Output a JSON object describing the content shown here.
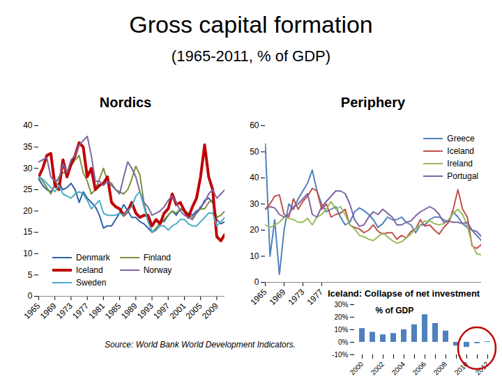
{
  "title": "Gross capital formation",
  "subtitle": "(1965-2011, % of GDP)",
  "source": "Source: World Bank World Development Indicators.",
  "chart_data": [
    {
      "type": "line",
      "title": "Nordics",
      "x": [
        1965,
        1966,
        1967,
        1968,
        1969,
        1970,
        1971,
        1972,
        1973,
        1974,
        1975,
        1976,
        1977,
        1978,
        1979,
        1980,
        1981,
        1982,
        1983,
        1984,
        1985,
        1986,
        1987,
        1988,
        1989,
        1990,
        1991,
        1992,
        1993,
        1994,
        1995,
        1996,
        1997,
        1998,
        1999,
        2000,
        2001,
        2002,
        2003,
        2004,
        2005,
        2006,
        2007,
        2008,
        2009,
        2010,
        2011
      ],
      "xlim": [
        1965,
        2011
      ],
      "xticks": [
        1965,
        1969,
        1973,
        1977,
        1981,
        1985,
        1989,
        1993,
        1997,
        2001,
        2005,
        2009
      ],
      "ylim": [
        0,
        40
      ],
      "yticks": [
        0,
        5,
        10,
        15,
        20,
        25,
        30,
        35,
        40
      ],
      "legend": "lower left",
      "series": [
        {
          "name": "Denmark",
          "color": "#2f5fa7",
          "line_style": "solid",
          "values": [
            27.5,
            26,
            25,
            24.5,
            26,
            26.5,
            25,
            25.5,
            26.5,
            25,
            22,
            24.5,
            23,
            22,
            21,
            19,
            16,
            16.5,
            16.5,
            18,
            19.5,
            21.5,
            20,
            18.5,
            18.5,
            17.5,
            17,
            16,
            15,
            15.5,
            17.5,
            17.5,
            19,
            20,
            19,
            20.5,
            20,
            19.5,
            19,
            20,
            20.5,
            22.5,
            23,
            22,
            18,
            17,
            17.5
          ]
        },
        {
          "name": "Finland",
          "color": "#77933c",
          "line_style": "solid",
          "values": [
            28,
            27,
            25.5,
            24,
            26,
            28,
            29,
            29,
            30.5,
            32,
            33,
            29,
            27,
            24,
            25,
            27.5,
            30,
            27,
            26.5,
            25,
            24.5,
            24,
            25,
            27.5,
            30.5,
            28.5,
            22,
            18,
            15,
            16,
            17,
            18,
            19,
            20,
            19.5,
            20.5,
            20.5,
            19,
            18.5,
            19.5,
            20.5,
            20.5,
            22,
            22.5,
            18.5,
            19,
            20
          ]
        },
        {
          "name": "Iceland",
          "color": "#c00000",
          "line_style": "thick",
          "values": [
            28,
            30,
            33,
            33.5,
            26,
            25,
            32,
            28,
            31,
            33,
            36,
            35,
            28,
            30,
            25,
            26,
            26.5,
            28,
            22,
            21,
            20.5,
            19,
            20,
            22,
            19.5,
            18.5,
            19,
            19,
            16.5,
            18,
            17,
            19.5,
            20.5,
            24,
            21.5,
            22,
            20,
            18.5,
            21,
            23,
            28,
            35.5,
            28,
            25,
            14,
            13,
            14.5
          ]
        },
        {
          "name": "Norway",
          "color": "#8064a2",
          "line_style": "solid",
          "values": [
            31.5,
            32,
            32.5,
            28,
            27,
            27.5,
            31,
            29,
            32,
            33,
            35.5,
            36.5,
            37.5,
            33,
            27,
            27,
            26,
            27,
            26,
            25,
            24,
            28,
            31.5,
            30,
            28,
            24.5,
            22,
            21,
            19,
            19.5,
            20,
            21,
            22.5,
            23.5,
            22,
            20,
            19,
            18.5,
            18,
            19.5,
            21,
            22,
            24,
            25,
            23,
            24,
            25
          ]
        },
        {
          "name": "Sweden",
          "color": "#4bacc6",
          "line_style": "solid",
          "values": [
            28,
            27.5,
            26.5,
            25.5,
            24.5,
            26,
            24,
            23.5,
            23,
            24,
            24.5,
            24,
            22.5,
            20.5,
            21.5,
            22.5,
            19.5,
            19,
            19,
            19,
            19.5,
            19,
            20,
            21,
            23.5,
            24.5,
            21,
            17.5,
            15,
            15.5,
            16.5,
            16.5,
            15.5,
            16.5,
            17,
            18,
            18,
            17,
            16.5,
            16.5,
            17.5,
            18.5,
            19.5,
            19.5,
            16.5,
            17.5,
            18.5
          ]
        }
      ]
    },
    {
      "type": "line",
      "title": "Periphery",
      "x": [
        1965,
        1966,
        1967,
        1968,
        1969,
        1970,
        1971,
        1972,
        1973,
        1974,
        1975,
        1976,
        1977,
        1978,
        1979,
        1980,
        1981,
        1982,
        1983,
        1984,
        1985,
        1986,
        1987,
        1988,
        1989,
        1990,
        1991,
        1992,
        1993,
        1994,
        1995,
        1996,
        1997,
        1998,
        1999,
        2000,
        2001,
        2002,
        2003,
        2004,
        2005,
        2006,
        2007,
        2008,
        2009,
        2010,
        2011
      ],
      "xlim": [
        1965,
        2011
      ],
      "xticks": [
        1965,
        1969,
        1973,
        1977
      ],
      "ylim": [
        0,
        60
      ],
      "yticks": [
        0,
        10,
        20,
        30,
        40,
        50,
        60
      ],
      "legend": "upper right",
      "series": [
        {
          "name": "Greece",
          "color": "#4f81bd",
          "line_style": "solid",
          "values": [
            53,
            10,
            24,
            3,
            20,
            30,
            28,
            32,
            35,
            38,
            43,
            35,
            30,
            27,
            28,
            29,
            25,
            22,
            23,
            27,
            28.5,
            27.5,
            26,
            24,
            21,
            22.5,
            25,
            24,
            24,
            25,
            23,
            22,
            19,
            22,
            22,
            24,
            25,
            25,
            24,
            23,
            27,
            25,
            22.5,
            21,
            20,
            18,
            16
          ]
        },
        {
          "name": "Iceland",
          "color": "#c0504d",
          "line_style": "solid",
          "values": [
            28,
            30,
            33,
            33.5,
            26,
            25,
            32,
            28,
            31,
            33,
            36,
            35,
            28,
            30,
            25,
            26,
            26.5,
            28,
            22,
            21,
            20.5,
            19,
            20,
            22,
            19.5,
            18.5,
            19,
            19,
            16.5,
            18,
            17,
            19.5,
            20.5,
            24,
            21.5,
            22,
            20,
            18.5,
            21,
            23,
            28,
            35.5,
            28,
            25,
            14,
            13,
            14.5
          ]
        },
        {
          "name": "Ireland",
          "color": "#9bbb59",
          "line_style": "solid",
          "values": [
            22,
            21,
            22,
            23,
            25,
            24.5,
            24,
            23,
            23,
            24.5,
            22,
            25,
            26,
            28,
            31,
            28,
            29,
            26,
            22,
            20.5,
            18,
            17.5,
            16.5,
            16,
            17.5,
            19,
            17.5,
            16,
            15,
            15.5,
            17,
            18.5,
            20.5,
            22,
            23.5,
            23.5,
            22.5,
            22,
            22.5,
            24,
            26.5,
            28,
            26,
            21.5,
            14.5,
            11,
            10.5
          ]
        },
        {
          "name": "Portugal",
          "color": "#8064a2",
          "line_style": "solid",
          "values": [
            28,
            29,
            28.5,
            26,
            25,
            26,
            29,
            30,
            32,
            34,
            26,
            25,
            29,
            31,
            33,
            35,
            35,
            34,
            30,
            24,
            21.5,
            22,
            25,
            27,
            26,
            28,
            26.5,
            25,
            22,
            22,
            23,
            23.5,
            25.5,
            27,
            28,
            29,
            28,
            26,
            23,
            23.5,
            23,
            23,
            22.5,
            23,
            20,
            19.5,
            17.5
          ]
        }
      ]
    },
    {
      "type": "bar",
      "title": "Iceland: Collapse of net investment",
      "ylabel": "% of GDP",
      "categories": [
        2000,
        null,
        2002,
        null,
        2004,
        null,
        2006,
        null,
        2008,
        null,
        2010,
        null,
        2012
      ],
      "values": [
        11,
        8,
        6,
        7,
        10,
        14,
        22,
        15,
        9,
        -3,
        -4,
        -1,
        0.5
      ],
      "color": "#4f81bd",
      "ylim": [
        -10,
        30
      ],
      "yticks": [
        {
          "value": -10,
          "label": "-10%"
        },
        {
          "value": 0,
          "label": "0%"
        },
        {
          "value": 10,
          "label": "10%"
        },
        {
          "value": 20,
          "label": "20%"
        },
        {
          "value": 30,
          "label": "30%"
        }
      ]
    }
  ]
}
